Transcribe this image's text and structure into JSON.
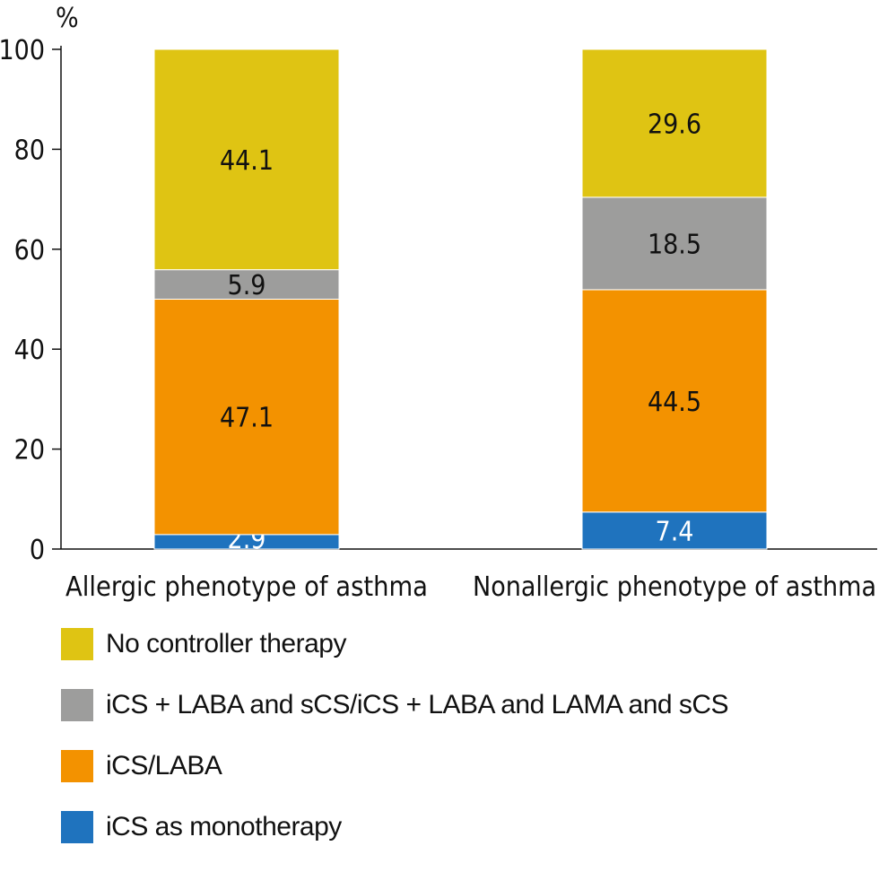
{
  "chart_data": {
    "type": "bar",
    "stacked": true,
    "title": "",
    "xlabel": "",
    "ylabel": "%",
    "ylim": [
      0,
      100
    ],
    "yticks": [
      0,
      20,
      40,
      60,
      80,
      100
    ],
    "categories": [
      "Allergic phenotype of asthma",
      "Nonallergic phenotype of asthma"
    ],
    "series": [
      {
        "name": "iCS as monotherapy",
        "color": "#1f73be",
        "label_color": "#ffffff",
        "values": [
          2.9,
          7.4
        ]
      },
      {
        "name": "iCS/LABA",
        "color": "#f39200",
        "label_color": "#111111",
        "values": [
          47.1,
          44.5
        ]
      },
      {
        "name": "iCS + LABA and sCS/iCS + LABA and LAMA and sCS",
        "color": "#9d9d9c",
        "label_color": "#111111",
        "values": [
          5.9,
          18.5
        ]
      },
      {
        "name": "No controller therapy",
        "color": "#dfc413",
        "label_color": "#111111",
        "values": [
          44.1,
          29.6
        ]
      }
    ],
    "legend_order": [
      3,
      2,
      1,
      0
    ],
    "legend_position": "bottom-left"
  }
}
